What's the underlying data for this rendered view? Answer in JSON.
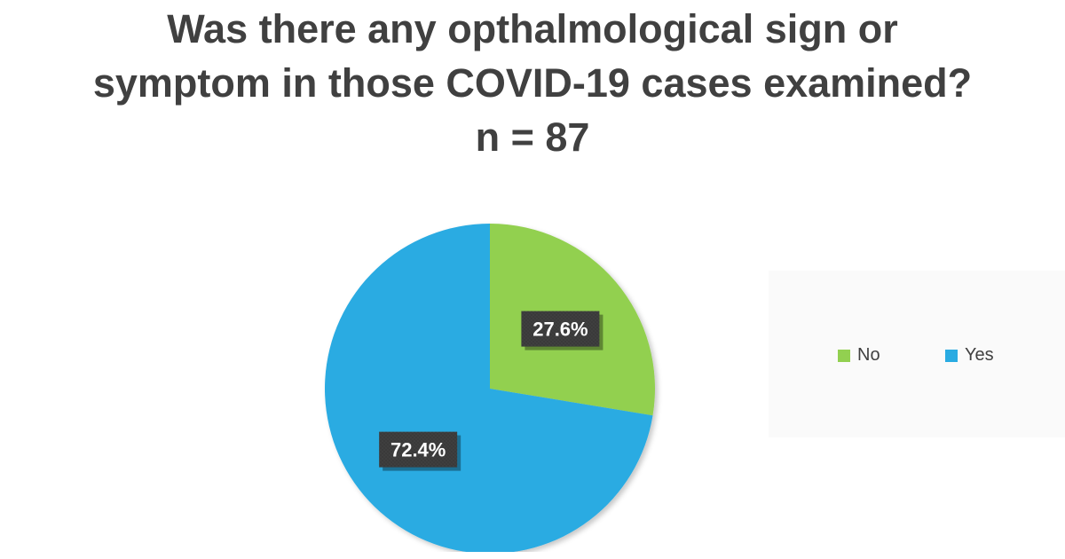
{
  "chart_data": {
    "type": "pie",
    "title_lines": [
      "Was there any opthalmological sign or",
      "symptom in those COVID-19 cases examined?",
      "n = 87"
    ],
    "slices": [
      {
        "name": "No",
        "value": 27.6,
        "label": "27.6%",
        "color": "#92d050"
      },
      {
        "name": "Yes",
        "value": 72.4,
        "label": "72.4%",
        "color": "#29abe2"
      }
    ],
    "start_angle_deg": 0,
    "direction": "clockwise",
    "legend_position": "right",
    "label_style": "dark-box"
  },
  "legend": {
    "items": [
      {
        "label": "No",
        "color": "#92d050"
      },
      {
        "label": "Yes",
        "color": "#29abe2"
      }
    ]
  }
}
